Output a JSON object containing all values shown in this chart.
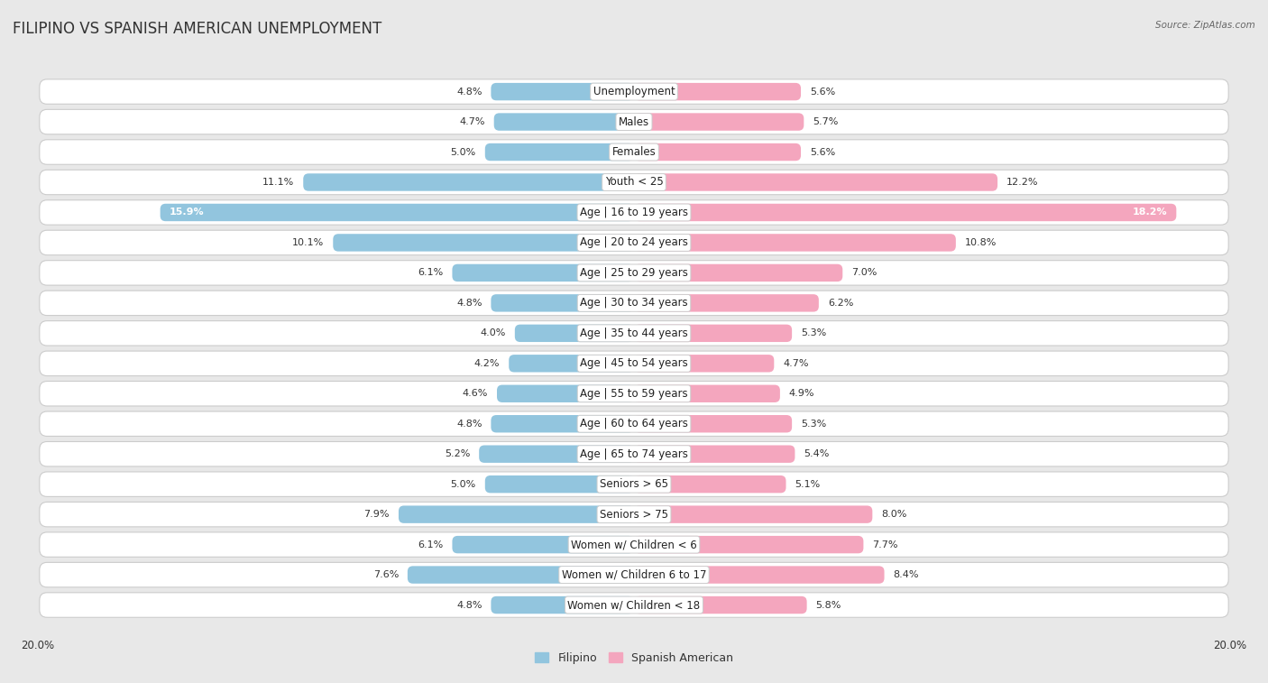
{
  "title": "FILIPINO VS SPANISH AMERICAN UNEMPLOYMENT",
  "source": "Source: ZipAtlas.com",
  "categories": [
    "Unemployment",
    "Males",
    "Females",
    "Youth < 25",
    "Age | 16 to 19 years",
    "Age | 20 to 24 years",
    "Age | 25 to 29 years",
    "Age | 30 to 34 years",
    "Age | 35 to 44 years",
    "Age | 45 to 54 years",
    "Age | 55 to 59 years",
    "Age | 60 to 64 years",
    "Age | 65 to 74 years",
    "Seniors > 65",
    "Seniors > 75",
    "Women w/ Children < 6",
    "Women w/ Children 6 to 17",
    "Women w/ Children < 18"
  ],
  "filipino": [
    4.8,
    4.7,
    5.0,
    11.1,
    15.9,
    10.1,
    6.1,
    4.8,
    4.0,
    4.2,
    4.6,
    4.8,
    5.2,
    5.0,
    7.9,
    6.1,
    7.6,
    4.8
  ],
  "spanish_american": [
    5.6,
    5.7,
    5.6,
    12.2,
    18.2,
    10.8,
    7.0,
    6.2,
    5.3,
    4.7,
    4.9,
    5.3,
    5.4,
    5.1,
    8.0,
    7.7,
    8.4,
    5.8
  ],
  "filipino_color": "#92c5de",
  "spanish_american_color": "#f4a6be",
  "filipino_color_dark": "#6aafd6",
  "spanish_american_color_dark": "#ee6fa0",
  "filipino_label": "Filipino",
  "spanish_american_label": "Spanish American",
  "max_val": 20.0,
  "background_color": "#e8e8e8",
  "row_bg_color": "#f5f5f5",
  "row_border_color": "#cccccc",
  "title_fontsize": 12,
  "label_fontsize": 8.5,
  "value_fontsize": 8,
  "legend_fontsize": 9
}
